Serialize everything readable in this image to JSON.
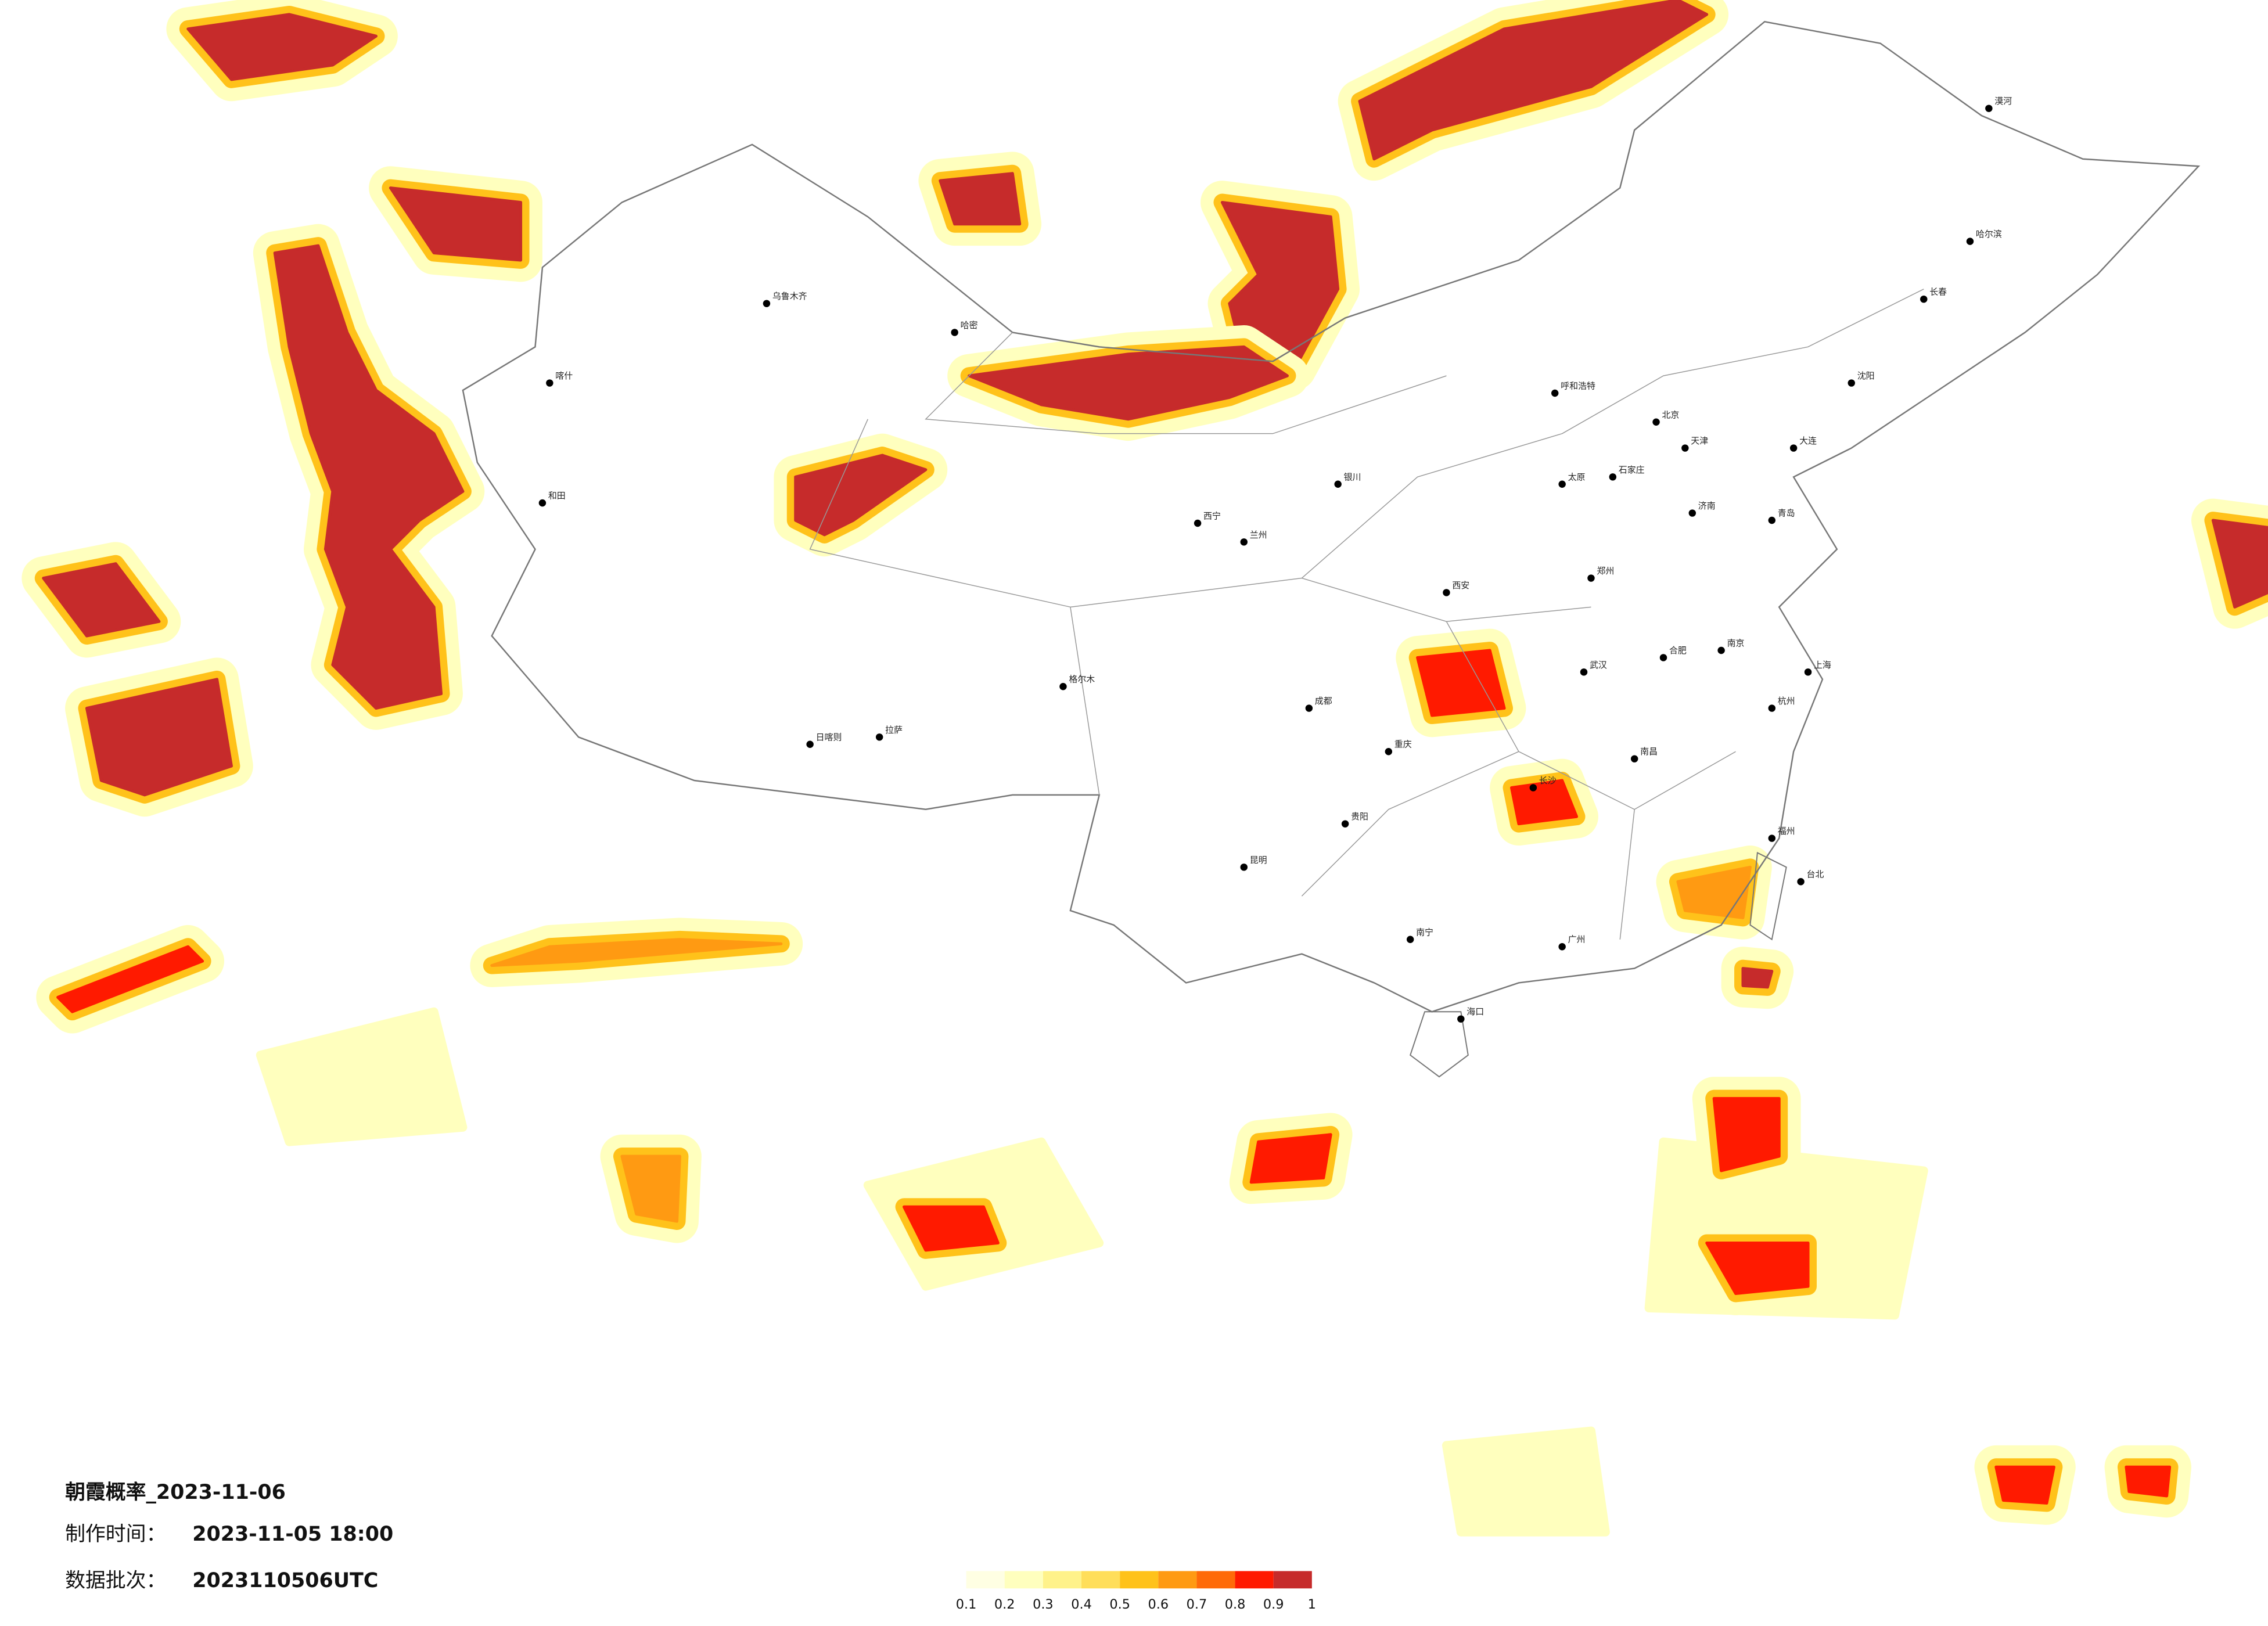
{
  "title": "朝霞概率_2023-11-06",
  "production_time": {
    "label": "制作时间：",
    "value": "2023-11-05 18:00"
  },
  "data_batch": {
    "label": "数据批次：",
    "value": "2023110506UTC"
  },
  "colorbar": {
    "ticks": [
      0.1,
      0.2,
      0.3,
      0.4,
      0.5,
      0.6,
      0.7,
      0.8,
      0.9,
      1
    ],
    "colors": [
      "#ffffe3",
      "#ffffbe",
      "#fff28a",
      "#ffde5a",
      "#ffc21a",
      "#ff9a12",
      "#ff6a08",
      "#ff1a00",
      "#c62b2b"
    ]
  },
  "cities": [
    "漠河",
    "哈尔滨",
    "长春",
    "沈阳",
    "北京",
    "天津",
    "呼和浩特",
    "太原",
    "石家庄",
    "济南",
    "郑州",
    "西安",
    "兰州",
    "西宁",
    "银川",
    "乌鲁木齐",
    "喀什",
    "和田",
    "拉萨",
    "日喀则",
    "成都",
    "重庆",
    "武汉",
    "长沙",
    "南昌",
    "合肥",
    "南京",
    "上海",
    "杭州",
    "福州",
    "广州",
    "南宁",
    "贵阳",
    "昆明",
    "海口",
    "台北",
    "哈密",
    "格尔木",
    "大连",
    "青岛"
  ]
}
